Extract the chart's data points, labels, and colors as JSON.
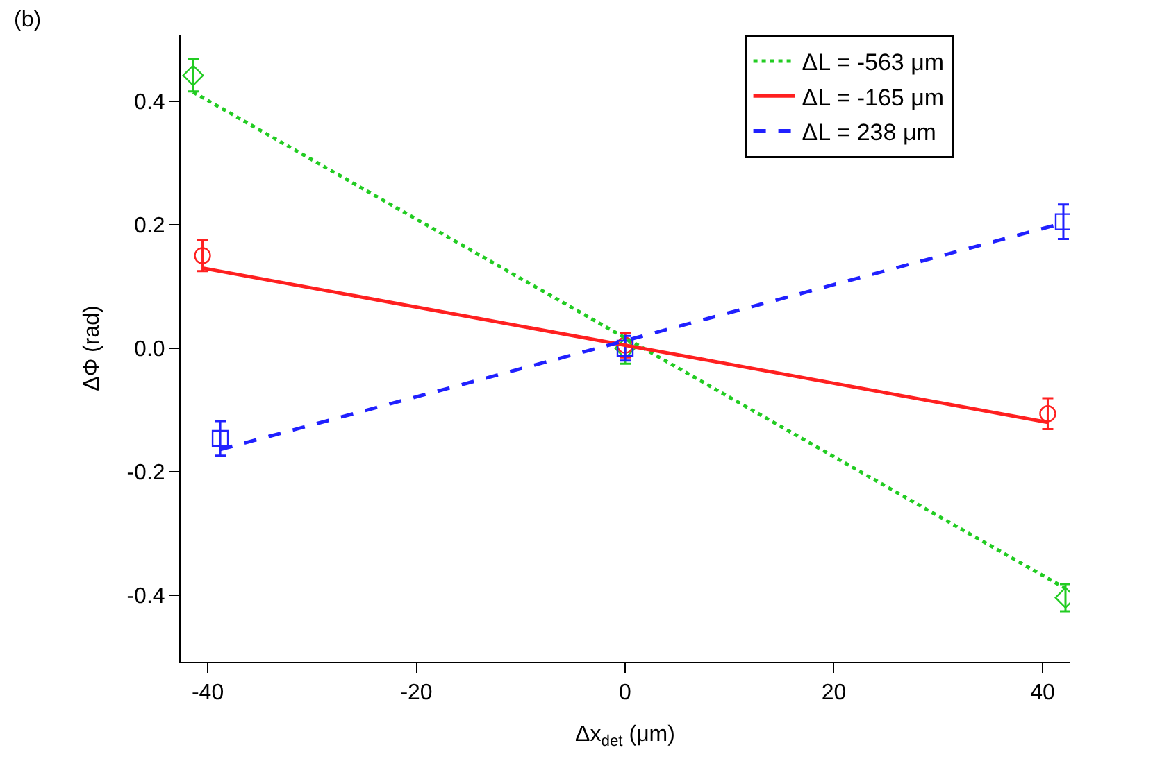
{
  "chart_data": {
    "type": "scatter",
    "xlabel": "Δx$_{det}$ (μm)",
    "ylabel": "ΔΦ (rad)",
    "annotations": [
      "(b)"
    ],
    "xlim": [
      -42.6,
      42.6
    ],
    "ylim": [
      -0.508,
      0.508
    ],
    "xticks": [
      -40,
      -20,
      0,
      20,
      40
    ],
    "yticks": [
      -0.4,
      -0.2,
      {
        "value": 0,
        "label": "0.0"
      },
      0.2,
      0.4
    ],
    "legend": "top right",
    "series": [
      {
        "color": "#22cc22",
        "marker": "diamond",
        "x": [
          -41.4,
          0,
          42.2
        ],
        "values": [
          0.442,
          0.0,
          -0.404
        ],
        "errors": [
          0.026,
          0.025,
          0.022
        ]
      },
      {
        "color": "#ff2020",
        "marker": "circle",
        "x": [
          -40.5,
          0,
          40.5
        ],
        "values": [
          0.15,
          0.005,
          -0.106
        ],
        "errors": [
          0.025,
          0.02,
          0.025
        ]
      },
      {
        "color": "#2020ff",
        "marker": "square",
        "x": [
          -38.8,
          0,
          42.0
        ],
        "values": [
          -0.146,
          0.0,
          0.205
        ],
        "errors": [
          0.028,
          0.02,
          0.028
        ]
      },
      {
        "type": "line",
        "name": "ΔL = -563 μm",
        "color": "#22cc22",
        "line_style": "dotted",
        "x": [
          -41.4,
          42.2
        ],
        "values": [
          0.415,
          -0.389
        ]
      },
      {
        "type": "line",
        "name": "ΔL = -165 μm",
        "color": "#ff2020",
        "line_style": "solid",
        "x": [
          -40.5,
          40.5
        ],
        "values": [
          0.13,
          -0.12
        ]
      },
      {
        "type": "line",
        "name": "ΔL = 238 μm",
        "color": "#2020ff",
        "line_style": "dashed",
        "x": [
          -38.8,
          42.0
        ],
        "values": [
          -0.164,
          0.203
        ]
      }
    ]
  }
}
